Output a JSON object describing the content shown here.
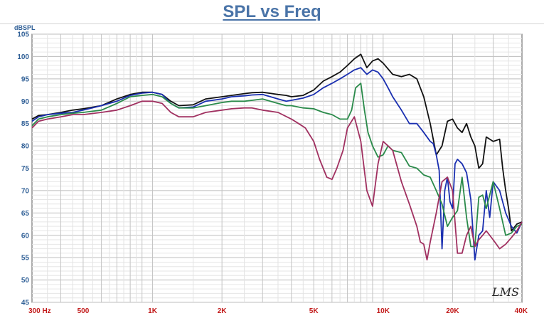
{
  "chart_data": {
    "type": "line",
    "title": "SPL vs Freq",
    "ylabel": "dBSPL",
    "xscale": "log",
    "xlim": [
      300,
      40000
    ],
    "ylim": [
      45,
      105
    ],
    "yticks": [
      45,
      50,
      55,
      60,
      65,
      70,
      75,
      80,
      85,
      90,
      95,
      100,
      105
    ],
    "xticks": [
      {
        "value": 300,
        "label": "300  Hz"
      },
      {
        "value": 500,
        "label": "500"
      },
      {
        "value": 1000,
        "label": "1K"
      },
      {
        "value": 2000,
        "label": "2K"
      },
      {
        "value": 5000,
        "label": "5K"
      },
      {
        "value": 10000,
        "label": "10K"
      },
      {
        "value": 20000,
        "label": "20K"
      },
      {
        "value": 40000,
        "label": "40K"
      }
    ],
    "grid": true,
    "watermark": "LMS",
    "series": [
      {
        "color": "#111111",
        "x": [
          300,
          320,
          350,
          400,
          450,
          500,
          600,
          700,
          800,
          900,
          1000,
          1100,
          1200,
          1300,
          1500,
          1700,
          2000,
          2200,
          2500,
          2700,
          3000,
          3500,
          3800,
          4000,
          4500,
          5000,
          5500,
          6000,
          6500,
          7000,
          7500,
          8000,
          8500,
          9000,
          9500,
          10000,
          11000,
          12000,
          13000,
          14000,
          15000,
          16000,
          17000,
          17500,
          18000,
          19000,
          20000,
          21000,
          22000,
          23000,
          24000,
          25000,
          26000,
          27000,
          28000,
          30000,
          32000,
          33000,
          34000,
          35000,
          36000,
          38000,
          40000
        ],
        "y": [
          86,
          86.8,
          87,
          87.5,
          88,
          88.3,
          89,
          90.5,
          91.5,
          92,
          92,
          91.5,
          90,
          89,
          89.2,
          90.5,
          91,
          91.3,
          91.7,
          91.9,
          92,
          91.5,
          91.3,
          91,
          91.3,
          92.5,
          94.5,
          95.5,
          96.5,
          98,
          99.5,
          100.5,
          97.5,
          99,
          99.5,
          98.5,
          96,
          95.5,
          96,
          95,
          91,
          85,
          78,
          79,
          80,
          85.5,
          86,
          84,
          83,
          85,
          82,
          80,
          75,
          76,
          82,
          81,
          81.5,
          75,
          70,
          66,
          61,
          62.5,
          63
        ]
      },
      {
        "color": "#1a2fb0",
        "x": [
          300,
          320,
          350,
          400,
          450,
          500,
          600,
          700,
          800,
          900,
          1000,
          1100,
          1200,
          1300,
          1500,
          1700,
          2000,
          2200,
          2500,
          2700,
          3000,
          3500,
          3800,
          4000,
          4500,
          5000,
          5500,
          6000,
          6500,
          7000,
          7500,
          8000,
          8500,
          9000,
          9500,
          10000,
          10500,
          11000,
          12000,
          13000,
          14000,
          15000,
          16000,
          16500,
          17000,
          17500,
          18000,
          18500,
          19000,
          19500,
          20000,
          20500,
          21000,
          22000,
          23000,
          24000,
          25000,
          26000,
          27000,
          28000,
          29000,
          30000,
          32000,
          34000,
          36000,
          38000,
          40000
        ],
        "y": [
          85.5,
          86.5,
          87,
          87.3,
          87.5,
          88,
          89,
          90,
          91.3,
          91.8,
          92,
          91.5,
          89.5,
          88.5,
          88.7,
          90,
          90.5,
          91,
          91.2,
          91.4,
          91.5,
          90.5,
          90,
          90.2,
          90.7,
          91.5,
          93,
          94,
          95,
          96,
          97,
          97.5,
          96,
          97,
          96.5,
          95,
          93,
          91,
          88,
          85,
          85,
          83,
          81,
          80.5,
          78,
          74.5,
          57,
          70,
          73,
          67.5,
          66,
          76,
          77,
          76,
          74,
          68,
          54.5,
          60,
          61,
          70,
          64,
          72,
          70,
          65,
          62,
          60.5,
          63
        ]
      },
      {
        "color": "#2a8a4a",
        "x": [
          300,
          320,
          350,
          400,
          450,
          500,
          600,
          700,
          800,
          900,
          1000,
          1100,
          1200,
          1300,
          1500,
          1700,
          2000,
          2200,
          2500,
          2700,
          3000,
          3500,
          3800,
          4000,
          4500,
          5000,
          5500,
          6000,
          6500,
          7000,
          7300,
          7600,
          8000,
          8300,
          8600,
          9000,
          9500,
          10000,
          10500,
          11000,
          12000,
          13000,
          14000,
          15000,
          16000,
          17000,
          18000,
          19000,
          20000,
          21000,
          22000,
          23000,
          24000,
          25000,
          26000,
          27000,
          28000,
          30000,
          32000,
          34000,
          36000,
          38000,
          40000
        ],
        "y": [
          84.5,
          86,
          86.5,
          87,
          87.3,
          87.5,
          88,
          89.5,
          91,
          91.3,
          91.5,
          91,
          89.5,
          88.5,
          88.5,
          89,
          89.7,
          90,
          90,
          90.2,
          90.5,
          89.5,
          89,
          89,
          88.5,
          88.3,
          87.5,
          87,
          86,
          86,
          88,
          93,
          94,
          88,
          83,
          80,
          77.5,
          78,
          80,
          79,
          78.5,
          75.5,
          75,
          73.5,
          73,
          70,
          67,
          62,
          64,
          65.5,
          73,
          64,
          57.5,
          57.5,
          68.5,
          69,
          66,
          72,
          66,
          60,
          60.5,
          62,
          62.5
        ]
      },
      {
        "color": "#a03060",
        "x": [
          300,
          320,
          350,
          400,
          450,
          500,
          600,
          700,
          800,
          900,
          1000,
          1100,
          1200,
          1300,
          1500,
          1700,
          2000,
          2200,
          2500,
          2700,
          3000,
          3500,
          4000,
          4300,
          4600,
          5000,
          5300,
          5700,
          6000,
          6300,
          6700,
          7000,
          7500,
          8000,
          8500,
          9000,
          9500,
          10000,
          10500,
          11000,
          12000,
          13000,
          14000,
          14500,
          15000,
          15500,
          16000,
          17000,
          18000,
          19000,
          20000,
          21000,
          22000,
          23000,
          24000,
          25000,
          26000,
          27000,
          28000,
          30000,
          32000,
          34000,
          36000,
          38000,
          40000
        ],
        "y": [
          84,
          85.5,
          86,
          86.5,
          87,
          87,
          87.5,
          88,
          89,
          90,
          90,
          89.5,
          87.5,
          86.5,
          86.5,
          87.5,
          88,
          88.3,
          88.5,
          88.5,
          88,
          87.5,
          86,
          85,
          84,
          81,
          77,
          73,
          72.5,
          75,
          79,
          84,
          86.5,
          81,
          70,
          66.5,
          76,
          81,
          80,
          79,
          72,
          67,
          62,
          58.5,
          58,
          54.5,
          58.5,
          65,
          72,
          73,
          70,
          56,
          56,
          60,
          62,
          57.5,
          59,
          60,
          61,
          59,
          57,
          58,
          59.5,
          61,
          63
        ]
      }
    ]
  }
}
